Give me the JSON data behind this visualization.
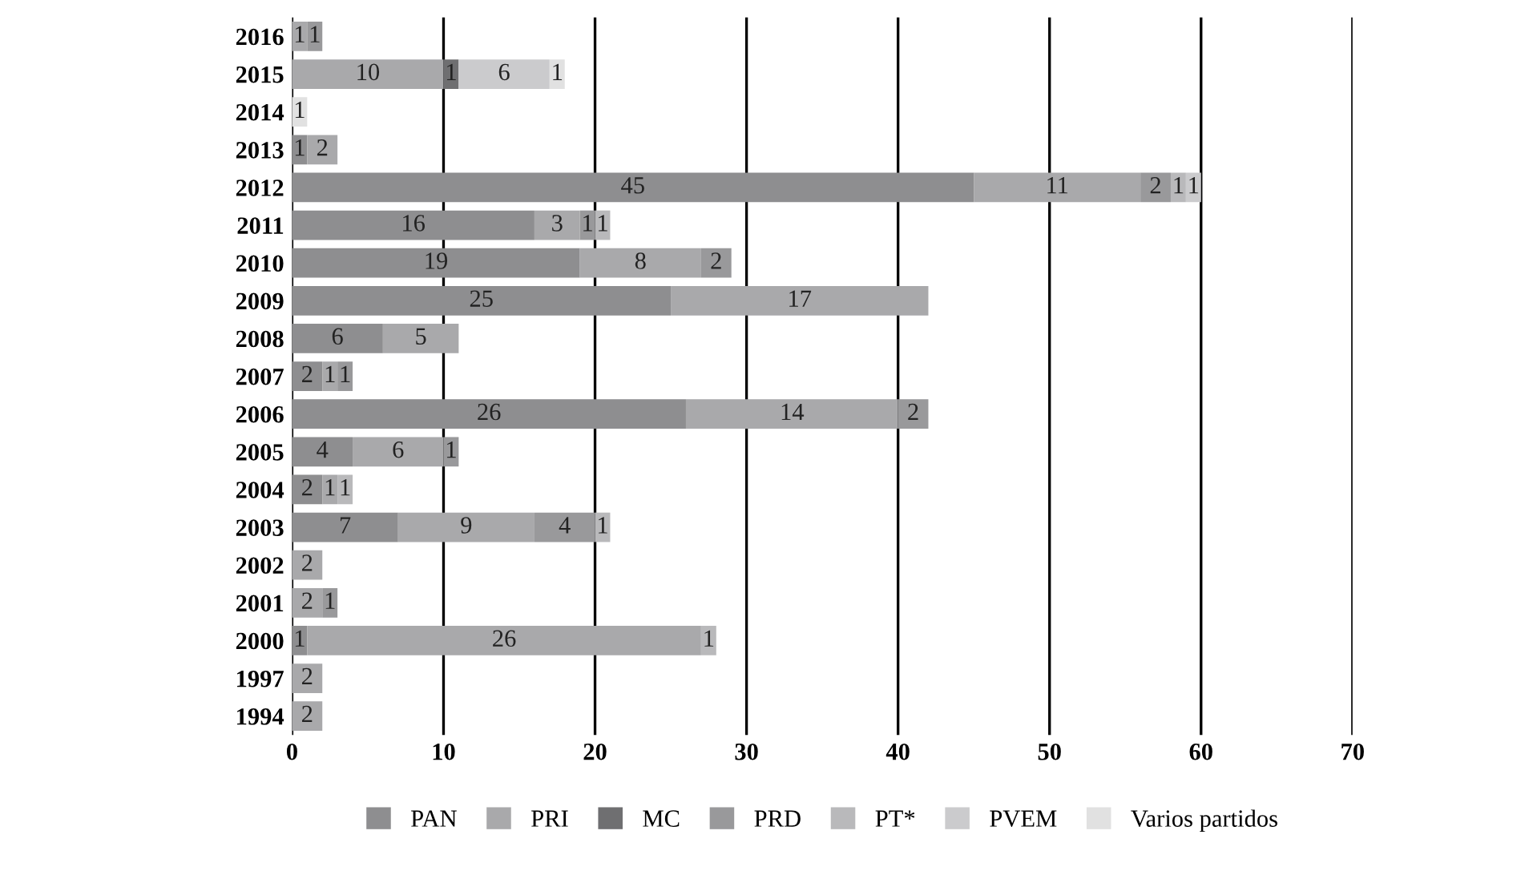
{
  "chart_data": {
    "type": "bar",
    "orientation": "horizontal",
    "stacked": true,
    "data_labels": true,
    "grid": "x",
    "legend": "bottom",
    "categories": [
      "2016",
      "2015",
      "2014",
      "2013",
      "2012",
      "2011",
      "2010",
      "2009",
      "2008",
      "2007",
      "2006",
      "2005",
      "2004",
      "2003",
      "2002",
      "2001",
      "2000",
      "1997",
      "1994"
    ],
    "xlim": [
      0,
      70
    ],
    "xticks": [
      0,
      10,
      20,
      30,
      40,
      50,
      60,
      70
    ],
    "series": [
      {
        "name": "PAN",
        "color": "#8e8e90",
        "values": [
          null,
          null,
          null,
          1,
          45,
          16,
          19,
          25,
          6,
          2,
          26,
          4,
          2,
          7,
          null,
          null,
          1,
          null,
          null
        ]
      },
      {
        "name": "PRI",
        "color": "#a9a9ab",
        "values": [
          1,
          10,
          null,
          2,
          11,
          3,
          8,
          17,
          5,
          1,
          14,
          6,
          1,
          9,
          2,
          2,
          26,
          2,
          2
        ]
      },
      {
        "name": "MC",
        "color": "#6f6f71",
        "values": [
          null,
          1,
          null,
          null,
          null,
          null,
          null,
          null,
          null,
          null,
          null,
          null,
          null,
          null,
          null,
          null,
          null,
          null,
          null
        ]
      },
      {
        "name": "PRD",
        "color": "#99999b",
        "values": [
          1,
          null,
          null,
          null,
          2,
          1,
          2,
          null,
          null,
          1,
          2,
          1,
          null,
          4,
          null,
          1,
          null,
          null,
          null
        ]
      },
      {
        "name": "PT*",
        "color": "#b9b9bb",
        "values": [
          null,
          null,
          null,
          null,
          1,
          1,
          null,
          null,
          null,
          null,
          null,
          null,
          1,
          1,
          null,
          null,
          1,
          null,
          null
        ]
      },
      {
        "name": "PVEM",
        "color": "#cbcbcd",
        "values": [
          null,
          6,
          null,
          null,
          1,
          null,
          null,
          null,
          null,
          null,
          null,
          null,
          null,
          null,
          null,
          null,
          null,
          null,
          null
        ]
      },
      {
        "name": "Varios partidos",
        "color": "#e1e1e1",
        "values": [
          null,
          1,
          1,
          null,
          null,
          null,
          null,
          null,
          null,
          null,
          null,
          null,
          null,
          null,
          null,
          null,
          null,
          null,
          null
        ]
      }
    ]
  }
}
